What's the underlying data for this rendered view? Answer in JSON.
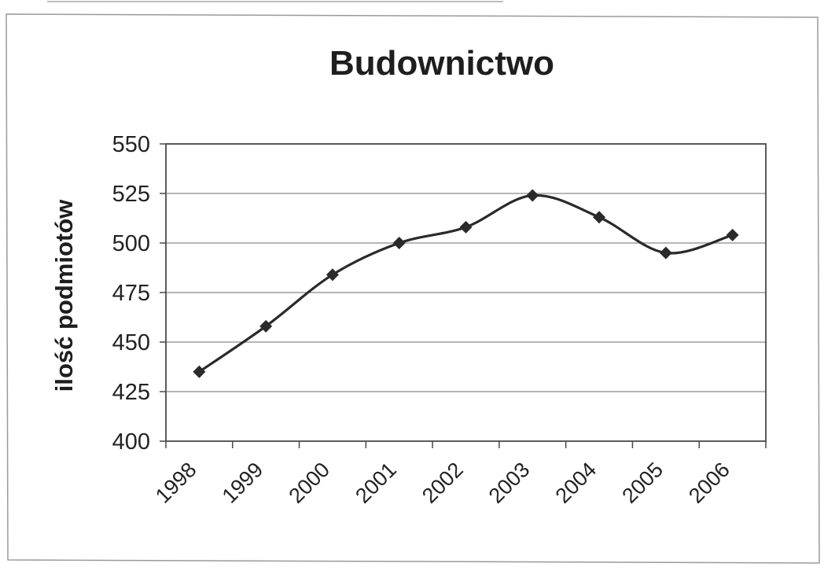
{
  "chart_data": {
    "type": "line",
    "title": "Budownictwo",
    "xlabel": "",
    "ylabel": "ilość podmiotów",
    "categories": [
      "1998",
      "1999",
      "2000",
      "2001",
      "2002",
      "2003",
      "2004",
      "2005",
      "2006"
    ],
    "series": [
      {
        "values": [
          435,
          458,
          484,
          500,
          508,
          524,
          513,
          495,
          504
        ]
      }
    ],
    "ylim": [
      400,
      550
    ],
    "yticks": [
      400,
      425,
      450,
      475,
      500,
      525,
      550
    ],
    "grid": true,
    "legend": "none",
    "colors": {
      "line": "#2a2a2a",
      "grid": "#8a8a8a",
      "frame": "#4a4a4a"
    },
    "marker": "diamond"
  }
}
